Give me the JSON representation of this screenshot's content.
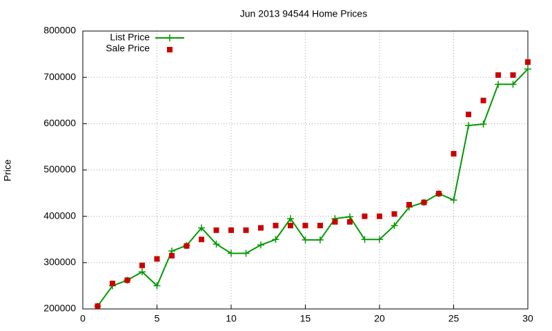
{
  "chart_data": {
    "type": "line",
    "title": "Jun 2013 94544 Home Prices",
    "y_label": "Price",
    "x": [
      1,
      2,
      3,
      4,
      5,
      6,
      7,
      8,
      9,
      10,
      11,
      12,
      13,
      14,
      15,
      16,
      17,
      18,
      19,
      20,
      21,
      22,
      23,
      24,
      25,
      26,
      27,
      28,
      29,
      30
    ],
    "series": [
      {
        "name": "List Price",
        "color": "#009900",
        "mode": "linespoints",
        "values": [
          206000,
          250000,
          262000,
          280000,
          250000,
          325000,
          337000,
          375000,
          340000,
          320000,
          320000,
          338000,
          350000,
          395000,
          349000,
          349000,
          395000,
          399000,
          350000,
          350000,
          380000,
          420000,
          430000,
          449000,
          435000,
          596000,
          599000,
          685000,
          685000,
          718000
        ]
      },
      {
        "name": "Sale Price",
        "color": "#cc0000",
        "mode": "points",
        "values": [
          206000,
          255000,
          262000,
          294000,
          308000,
          315000,
          336000,
          350000,
          370000,
          370000,
          370000,
          375000,
          380000,
          380000,
          380000,
          380000,
          388000,
          388000,
          400000,
          400000,
          405000,
          425000,
          430000,
          449000,
          535000,
          620000,
          650000,
          705000,
          705000,
          733000
        ]
      }
    ],
    "xlim": [
      0,
      30
    ],
    "xticks": [
      0,
      5,
      10,
      15,
      20,
      25,
      30
    ],
    "ylim": [
      200000,
      800000
    ],
    "yticks": [
      200000,
      300000,
      400000,
      500000,
      600000,
      700000,
      800000
    ],
    "grid": true,
    "legend": "top-left"
  }
}
